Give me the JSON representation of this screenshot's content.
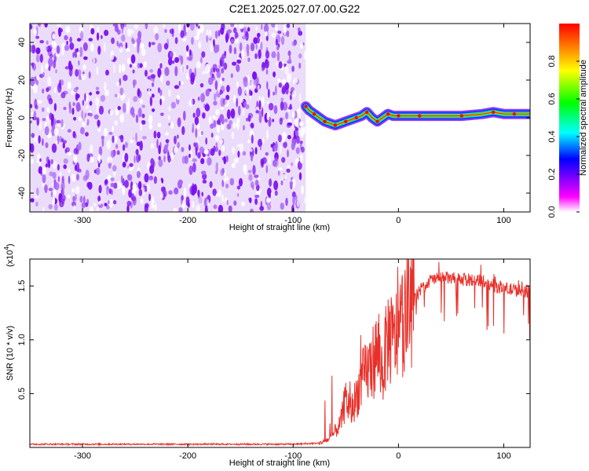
{
  "title": "C2E1.2025.027.07.00.G22",
  "chart_data": [
    {
      "type": "heatmap",
      "xlabel": "Height of straight line (km)",
      "ylabel": "Frequency (Hz)",
      "xlim": [
        -350,
        125
      ],
      "ylim": [
        -50,
        50
      ],
      "xticks": [
        -300,
        -200,
        -100,
        0,
        100
      ],
      "yticks": [
        -40,
        -20,
        0,
        20,
        40
      ],
      "colorbar": {
        "label": "Normalized spectral amplitude",
        "range": [
          0,
          1
        ],
        "ticks": [
          "0.0",
          "0.2",
          "0.4",
          "0.6",
          "0.8"
        ],
        "colormap": [
          "#ffffff",
          "#ff00ff",
          "#0000ff",
          "#00ffff",
          "#00ff00",
          "#ffff00",
          "#ff0000"
        ]
      },
      "noise_region": {
        "x_range": [
          -350,
          -88
        ],
        "color": "#7f00ff"
      },
      "signal_ridge": {
        "x": [
          -88,
          -85,
          -80,
          -75,
          -70,
          -65,
          -60,
          -55,
          -50,
          -45,
          -40,
          -35,
          -30,
          -25,
          -20,
          -15,
          -10,
          -5,
          0,
          10,
          20,
          40,
          60,
          80,
          90,
          100,
          110,
          125
        ],
        "frequency": [
          6,
          4,
          2,
          0,
          -2,
          -3,
          -4,
          -3,
          -2,
          -1,
          0,
          1,
          3,
          0,
          -2,
          0,
          2,
          1,
          1,
          1,
          1,
          1,
          1,
          2,
          3,
          2,
          2,
          2
        ]
      }
    },
    {
      "type": "line",
      "xlabel": "Height of straight line (km)",
      "ylabel": "SNR (10 * v/v)",
      "y_scale_label": "(x10",
      "y_scale_exponent": "4",
      "xlim": [
        -350,
        125
      ],
      "ylim": [
        0,
        1.75
      ],
      "xticks": [
        -300,
        -200,
        -100,
        0,
        100
      ],
      "yticks": [
        0.5,
        1.0,
        1.5
      ],
      "series": [
        {
          "color": "#e8302a",
          "x": [
            -350,
            -100,
            -75,
            -65,
            -55,
            -50,
            -45,
            -35,
            -25,
            -20,
            -15,
            -10,
            -5,
            0,
            5,
            10,
            20,
            30,
            40,
            60,
            80,
            90,
            100,
            110,
            125
          ],
          "y": [
            0.03,
            0.03,
            0.04,
            0.08,
            0.22,
            0.45,
            0.33,
            0.62,
            0.78,
            0.9,
            0.7,
            1.05,
            0.95,
            1.1,
            1.2,
            1.3,
            1.45,
            1.55,
            1.58,
            1.56,
            1.55,
            1.5,
            1.48,
            1.46,
            1.45
          ]
        }
      ]
    }
  ]
}
